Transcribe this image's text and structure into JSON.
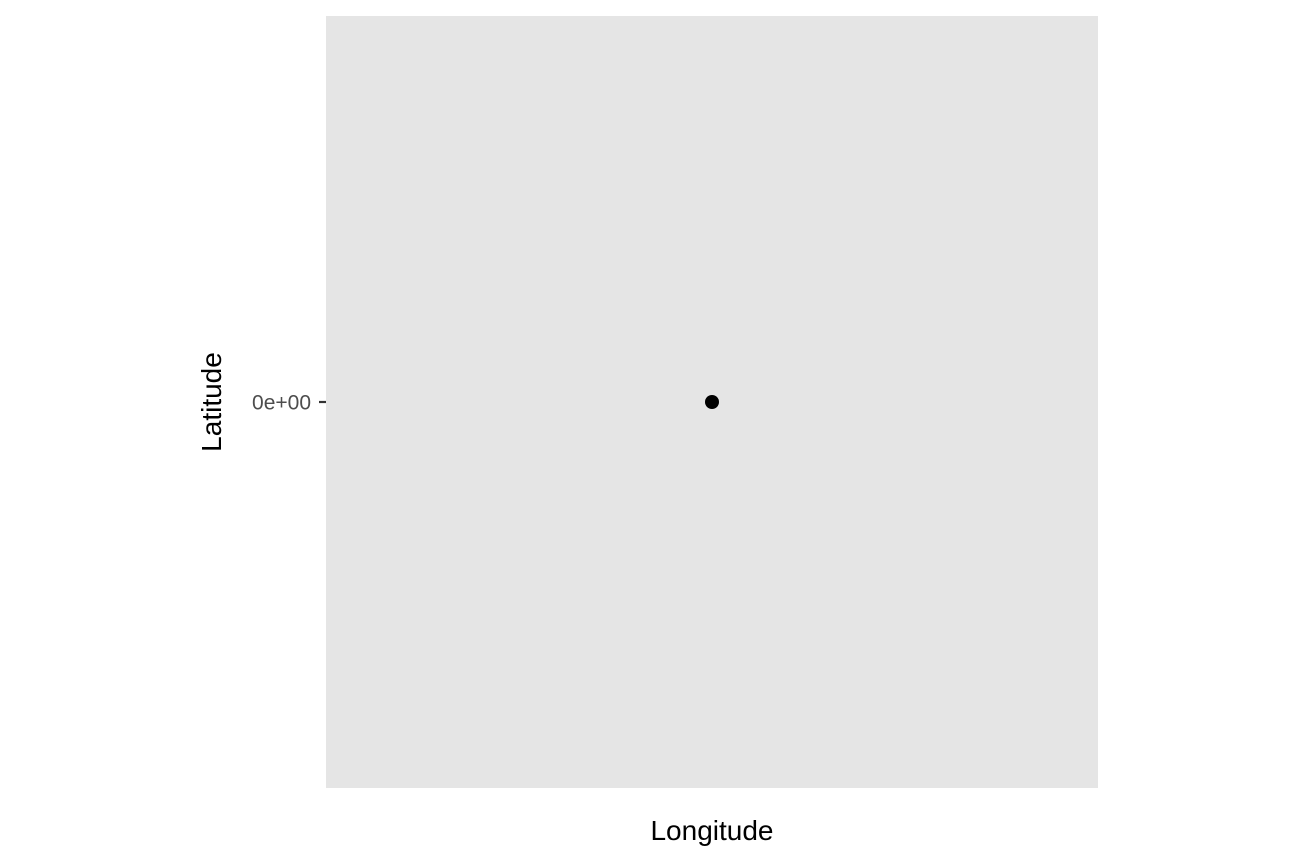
{
  "colors": {
    "background": "#ffffff",
    "panel": "#e5e5e5",
    "point": "#000000",
    "tick": "#333333",
    "tick_label": "#4d4d4d"
  },
  "chart_data": {
    "type": "scatter",
    "title": "",
    "xlabel": "Longitude",
    "ylabel": "Latitude",
    "grid": false,
    "legend": "none",
    "x_ticks": [],
    "y_ticks": [
      {
        "value": 0,
        "label": "0e+00"
      }
    ],
    "xlim": [
      -1,
      1
    ],
    "ylim": [
      -1,
      1
    ],
    "points": [
      {
        "x": 0,
        "y": 0
      }
    ]
  }
}
